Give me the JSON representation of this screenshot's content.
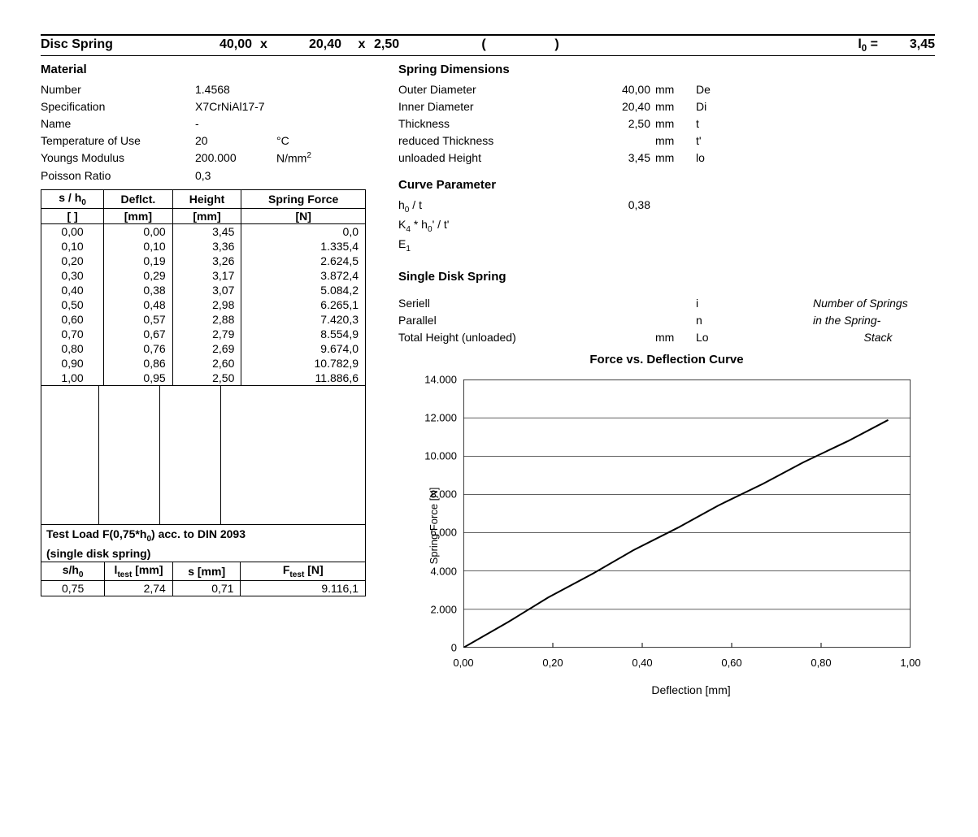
{
  "header": {
    "title": "Disc Spring",
    "dim1": "40,00",
    "dim2": "20,40",
    "dim3": "2,50",
    "x": "x",
    "paren_open": "(",
    "paren_close": ")",
    "l0_label_html": "l<sub>0</sub> =",
    "l0_value": "3,45"
  },
  "material": {
    "title": "Material",
    "rows": [
      {
        "k": "Number",
        "v": "1.4568",
        "u": ""
      },
      {
        "k": "Specification",
        "v": "X7CrNiAl17-7",
        "u": ""
      },
      {
        "k": "Name",
        "v": "-",
        "u": ""
      },
      {
        "k": "Temperature of Use",
        "v": "20",
        "u": "°C"
      },
      {
        "k": "Youngs Modulus",
        "v": "200.000",
        "u_html": "N/mm<sup>2</sup>"
      },
      {
        "k": "Poisson Ratio",
        "v": "0,3",
        "u": ""
      }
    ]
  },
  "spring_dim": {
    "title": "Spring Dimensions",
    "rows": [
      {
        "k": "Outer Diameter",
        "v": "40,00",
        "u": "mm",
        "sym": "De"
      },
      {
        "k": "Inner Diameter",
        "v": "20,40",
        "u": "mm",
        "sym": "Di"
      },
      {
        "k": "Thickness",
        "v": "2,50",
        "u": "mm",
        "sym": "t"
      },
      {
        "k": "reduced Thickness",
        "v": "",
        "u": "mm",
        "sym": "t'"
      },
      {
        "k": "unloaded Height",
        "v": "3,45",
        "u": "mm",
        "sym": "lo"
      }
    ]
  },
  "curve_param": {
    "title": "Curve Parameter",
    "rows": [
      {
        "k_html": "h<sub>0</sub> / t",
        "v": "0,38"
      },
      {
        "k_html": "K<sub>4</sub> * h<sub>0</sub>' / t'",
        "v": ""
      },
      {
        "k_html": "E<sub>1</sub>",
        "v": ""
      }
    ]
  },
  "single_spring": {
    "title": "Single Disk Spring",
    "rows": [
      {
        "k": "Seriell",
        "v": "",
        "u": "",
        "sym": "i"
      },
      {
        "k": "Parallel",
        "v": "",
        "u": "",
        "sym": "n"
      },
      {
        "k": "Total Height (unloaded)",
        "v": "",
        "u": "mm",
        "sym": "Lo"
      }
    ],
    "note1": "Number of Springs",
    "note2": "in the Spring-",
    "note3": "Stack"
  },
  "data_table": {
    "h1_html": "s / h<sub>0</sub>",
    "h2": "Deflct.",
    "h3": "Height",
    "h4": "Spring Force",
    "u1": "[ ]",
    "u2": "[mm]",
    "u3": "[mm]",
    "u4": "[N]",
    "rows": [
      [
        "0,00",
        "0,00",
        "3,45",
        "0,0"
      ],
      [
        "0,10",
        "0,10",
        "3,36",
        "1.335,4"
      ],
      [
        "0,20",
        "0,19",
        "3,26",
        "2.624,5"
      ],
      [
        "0,30",
        "0,29",
        "3,17",
        "3.872,4"
      ],
      [
        "0,40",
        "0,38",
        "3,07",
        "5.084,2"
      ],
      [
        "0,50",
        "0,48",
        "2,98",
        "6.265,1"
      ],
      [
        "0,60",
        "0,57",
        "2,88",
        "7.420,3"
      ],
      [
        "0,70",
        "0,67",
        "2,79",
        "8.554,9"
      ],
      [
        "0,80",
        "0,76",
        "2,69",
        "9.674,0"
      ],
      [
        "0,90",
        "0,86",
        "2,60",
        "10.782,9"
      ],
      [
        "1,00",
        "0,95",
        "2,50",
        "11.886,6"
      ]
    ]
  },
  "test_load": {
    "title_html": "Test Load F(0,75*h<sub>0</sub>) acc. to DIN 2093",
    "subtitle": "(single disk spring)",
    "h1_html": "s/h<sub>0</sub>",
    "h2_html": "l<sub>test</sub> [mm]",
    "h3": "s [mm]",
    "h4_html": "F<sub>test</sub> [N]",
    "row": [
      "0,75",
      "2,74",
      "0,71",
      "9.116,1"
    ]
  },
  "chart": {
    "title": "Force vs. Deflection Curve",
    "ylabel": "Spring Force [N]",
    "xlabel": "Deflection [mm]",
    "ylim": [
      0,
      14000
    ],
    "xlim": [
      0,
      1.0
    ],
    "ytick_labels": [
      "0",
      "2.000",
      "4.000",
      "6.000",
      "8.000",
      "10.000",
      "12.000",
      "14.000"
    ],
    "ytick_vals": [
      0,
      2000,
      4000,
      6000,
      8000,
      10000,
      12000,
      14000
    ],
    "xtick_labels": [
      "0,00",
      "0,20",
      "0,40",
      "0,60",
      "0,80",
      "1,00"
    ],
    "xtick_vals": [
      0,
      0.2,
      0.4,
      0.6,
      0.8,
      1.0
    ],
    "points": [
      [
        0.0,
        0
      ],
      [
        0.1,
        1335.4
      ],
      [
        0.19,
        2624.5
      ],
      [
        0.29,
        3872.4
      ],
      [
        0.38,
        5084.2
      ],
      [
        0.48,
        6265.1
      ],
      [
        0.57,
        7420.3
      ],
      [
        0.67,
        8554.9
      ],
      [
        0.76,
        9674.0
      ],
      [
        0.86,
        10782.9
      ],
      [
        0.95,
        11886.6
      ]
    ],
    "grid_color": "#000000",
    "line_color": "#000000",
    "line_width": 2,
    "background": "#ffffff",
    "axis_fontsize": 13
  }
}
